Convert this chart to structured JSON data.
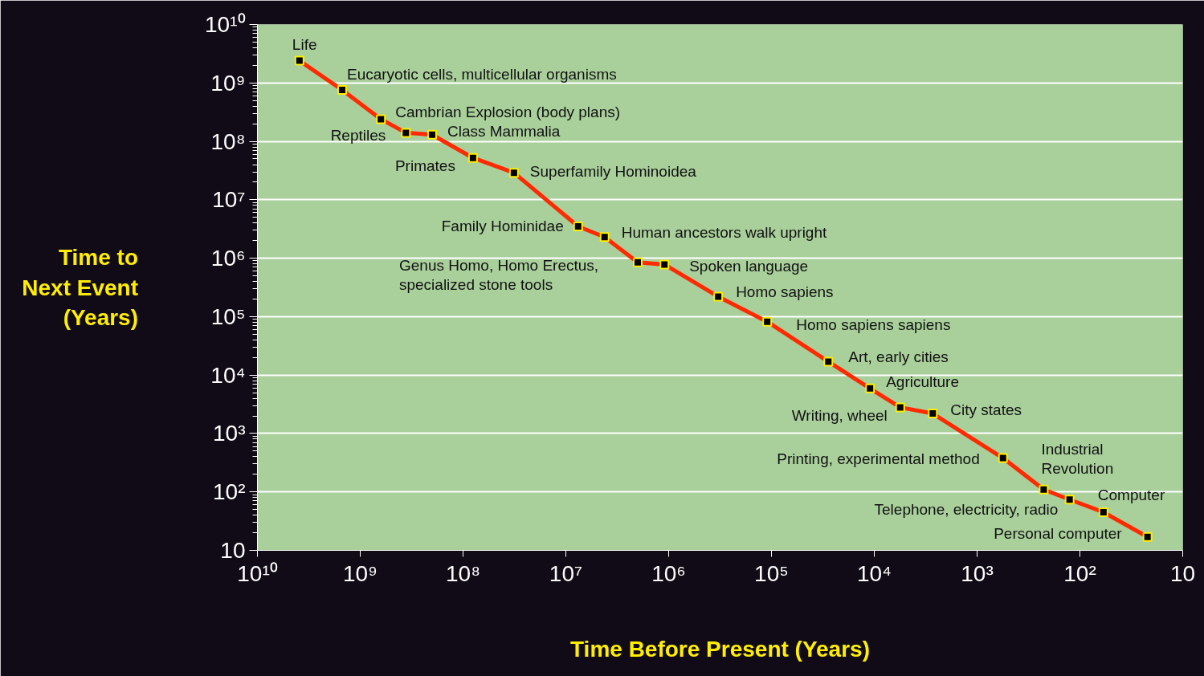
{
  "chart_data": {
    "type": "line",
    "xlabel": "Time Before Present (Years)",
    "ylabel": "Time to\nNext Event\n(Years)",
    "log": "xy",
    "grid": "y",
    "marker": "square",
    "line_style": "solid",
    "xlim": [
      10000000000.0,
      10
    ],
    "ylim": [
      10,
      10000000000.0
    ],
    "xticks": [
      {
        "value": 10000000000.0,
        "label": "10¹⁰"
      },
      {
        "value": 1000000000.0,
        "label": "10⁹"
      },
      {
        "value": 100000000.0,
        "label": "10⁸"
      },
      {
        "value": 10000000.0,
        "label": "10⁷"
      },
      {
        "value": 1000000.0,
        "label": "10⁶"
      },
      {
        "value": 100000.0,
        "label": "10⁵"
      },
      {
        "value": 10000.0,
        "label": "10⁴"
      },
      {
        "value": 1000.0,
        "label": "10³"
      },
      {
        "value": 100,
        "label": "10²"
      },
      10
    ],
    "yticks": [
      10,
      {
        "value": 100,
        "label": "10²"
      },
      {
        "value": 1000.0,
        "label": "10³"
      },
      {
        "value": 10000.0,
        "label": "10⁴"
      },
      {
        "value": 100000.0,
        "label": "10⁵"
      },
      {
        "value": 1000000.0,
        "label": "10⁶"
      },
      {
        "value": 10000000.0,
        "label": "10⁷"
      },
      {
        "value": 100000000.0,
        "label": "10⁸"
      },
      {
        "value": 1000000000.0,
        "label": "10⁹"
      },
      {
        "value": 10000000000.0,
        "label": "10¹⁰"
      }
    ],
    "x": [
      3900000000.0,
      1500000000.0,
      630000000.0,
      360000000.0,
      200000000.0,
      80000000.0,
      32000000.0,
      7600000.0,
      4200000.0,
      2000000.0,
      1100000.0,
      330000.0,
      110000.0,
      28000.0,
      11000.0,
      5600.0,
      2700.0,
      560,
      225,
      126,
      59,
      22
    ],
    "series": [
      {
        "color": "#ff2a00",
        "values": [
          2400000000.0,
          760000000.0,
          240000000.0,
          140000000.0,
          130000000.0,
          52000000.0,
          29000000.0,
          3500000.0,
          2300000.0,
          850000.0,
          780000.0,
          220000.0,
          82000.0,
          17000.0,
          5900.0,
          2800.0,
          2200.0,
          380,
          110,
          74,
          45,
          17
        ]
      }
    ],
    "annotations": [
      {
        "text": "Life",
        "x": 3900000000.0,
        "y": 2400000000.0
      },
      {
        "text": "Eucaryotic cells, multicellular organisms",
        "x": 1500000000.0,
        "y": 760000000.0
      },
      {
        "text": "Cambrian Explosion (body plans)",
        "x": 630000000.0,
        "y": 240000000.0
      },
      {
        "text": "Reptiles",
        "x": 360000000.0,
        "y": 140000000.0
      },
      {
        "text": "Class Mammalia",
        "x": 200000000.0,
        "y": 130000000.0
      },
      {
        "text": "Primates",
        "x": 80000000.0,
        "y": 52000000.0
      },
      {
        "text": "Superfamily Hominoidea",
        "x": 32000000.0,
        "y": 29000000.0
      },
      {
        "text": "Family Hominidae",
        "x": 7600000.0,
        "y": 3500000.0
      },
      {
        "text": "Human ancestors walk upright",
        "x": 4200000.0,
        "y": 2300000.0
      },
      {
        "text": "Genus Homo, Homo Erectus,\nspecialized stone tools",
        "x": 2000000.0,
        "y": 850000.0
      },
      {
        "text": "Spoken language",
        "x": 1100000.0,
        "y": 780000.0
      },
      {
        "text": "Homo sapiens",
        "x": 330000.0,
        "y": 220000.0
      },
      {
        "text": "Homo sapiens sapiens",
        "x": 110000.0,
        "y": 82000.0
      },
      {
        "text": "Art, early cities",
        "x": 28000.0,
        "y": 17000.0
      },
      {
        "text": "Agriculture",
        "x": 11000.0,
        "y": 5900.0
      },
      {
        "text": "Writing, wheel",
        "x": 5600.0,
        "y": 2800.0
      },
      {
        "text": "City states",
        "x": 2700.0,
        "y": 2200.0
      },
      {
        "text": "Printing, experimental method",
        "x": 560,
        "y": 380
      },
      {
        "text": "Industrial\nRevolution",
        "x": 225,
        "y": 110
      },
      {
        "text": "Telephone,  electricity, radio",
        "x": 126,
        "y": 74
      },
      {
        "text": "Computer",
        "x": 59,
        "y": 45
      },
      {
        "text": "Personal computer",
        "x": 22,
        "y": 17
      }
    ]
  }
}
